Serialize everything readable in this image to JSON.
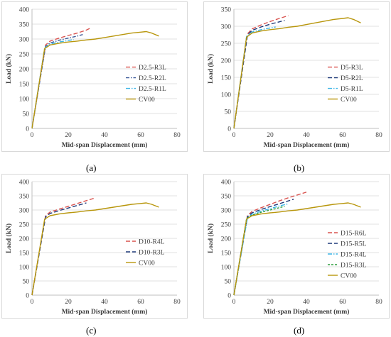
{
  "captions": [
    "(a)",
    "(b)",
    "(c)",
    "(d)"
  ],
  "chart_data": [
    {
      "type": "line",
      "panel": "(a)",
      "xlabel": "Mid-span Displacement (mm)",
      "ylabel": "Load (kN)",
      "xlim": [
        0,
        80
      ],
      "ylim": [
        0,
        400
      ],
      "xticks": [
        0,
        20,
        40,
        60,
        80
      ],
      "yticks": [
        0,
        50,
        100,
        150,
        200,
        250,
        300,
        350,
        400
      ],
      "grid": true,
      "legend": "right",
      "series": [
        {
          "name": "D2.5-R3L",
          "color": "#d9534f",
          "dash": "6,3",
          "x": [
            0,
            7.5,
            10,
            15,
            20,
            25,
            30,
            32
          ],
          "y": [
            0,
            280,
            293,
            303,
            312,
            320,
            330,
            336
          ]
        },
        {
          "name": "D2.5-R2L",
          "color": "#3b5998",
          "dash": "5,2,1.5,2",
          "x": [
            0,
            7.5,
            10,
            15,
            20,
            25,
            28
          ],
          "y": [
            0,
            275,
            287,
            296,
            303,
            310,
            315
          ]
        },
        {
          "name": "D2.5-R1L",
          "color": "#3ab4e6",
          "dash": "6,2,1.5,2",
          "x": [
            0,
            7,
            10,
            15,
            20,
            23
          ],
          "y": [
            0,
            270,
            283,
            290,
            295,
            298
          ]
        },
        {
          "name": "CV00",
          "color": "#b8960c",
          "dash": "",
          "x": [
            0,
            7,
            10,
            15,
            20,
            25,
            30,
            35,
            40,
            45,
            50,
            55,
            60,
            63,
            66,
            70
          ],
          "y": [
            0,
            268,
            280,
            286,
            290,
            293,
            297,
            300,
            305,
            310,
            315,
            320,
            323,
            325,
            320,
            310
          ]
        }
      ]
    },
    {
      "type": "line",
      "panel": "(b)",
      "xlabel": "Mid-span Displacement (mm)",
      "ylabel": "Load (kN)",
      "xlim": [
        0,
        80
      ],
      "ylim": [
        0,
        350
      ],
      "xticks": [
        0,
        20,
        40,
        60,
        80
      ],
      "yticks": [
        0,
        50,
        100,
        150,
        200,
        250,
        300,
        350
      ],
      "grid": true,
      "legend": "right",
      "series": [
        {
          "name": "D5-R3L",
          "color": "#d9534f",
          "dash": "6,3",
          "x": [
            0,
            7.5,
            10,
            15,
            20,
            25,
            30
          ],
          "y": [
            0,
            278,
            292,
            304,
            314,
            323,
            331
          ]
        },
        {
          "name": "D5-R2L",
          "color": "#1f3a7a",
          "dash": "6,3",
          "x": [
            0,
            7.5,
            10,
            15,
            20,
            25,
            28
          ],
          "y": [
            0,
            274,
            288,
            298,
            306,
            313,
            317
          ]
        },
        {
          "name": "D5-R1L",
          "color": "#3ab4e6",
          "dash": "6,2,1.5,2",
          "x": [
            0,
            7,
            10,
            15,
            20,
            23
          ],
          "y": [
            0,
            270,
            283,
            290,
            295,
            298
          ]
        },
        {
          "name": "CV00",
          "color": "#b8960c",
          "dash": "",
          "x": [
            0,
            7,
            10,
            15,
            20,
            25,
            30,
            35,
            40,
            45,
            50,
            55,
            60,
            63,
            66,
            70
          ],
          "y": [
            0,
            268,
            280,
            286,
            290,
            293,
            297,
            300,
            305,
            310,
            315,
            320,
            323,
            325,
            320,
            310
          ]
        }
      ]
    },
    {
      "type": "line",
      "panel": "(c)",
      "xlabel": "Mid-span Displacement (mm)",
      "ylabel": "Load (kN)",
      "xlim": [
        0,
        80
      ],
      "ylim": [
        0,
        400
      ],
      "xticks": [
        0,
        20,
        40,
        60,
        80
      ],
      "yticks": [
        0,
        50,
        100,
        150,
        200,
        250,
        300,
        350,
        400
      ],
      "grid": true,
      "legend": "right",
      "series": [
        {
          "name": "D10-R4L",
          "color": "#d9534f",
          "dash": "6,3",
          "x": [
            0,
            7.5,
            10,
            15,
            20,
            25,
            30,
            35
          ],
          "y": [
            0,
            280,
            293,
            303,
            313,
            323,
            333,
            343
          ]
        },
        {
          "name": "D10-R3L",
          "color": "#1f3a7a",
          "dash": "6,3",
          "x": [
            0,
            7.5,
            10,
            15,
            20,
            25,
            30
          ],
          "y": [
            0,
            276,
            288,
            298,
            307,
            316,
            325
          ]
        },
        {
          "name": "CV00",
          "color": "#b8960c",
          "dash": "",
          "x": [
            0,
            7,
            10,
            15,
            20,
            25,
            30,
            35,
            40,
            45,
            50,
            55,
            60,
            63,
            66,
            70
          ],
          "y": [
            0,
            268,
            280,
            286,
            290,
            293,
            297,
            300,
            305,
            310,
            315,
            320,
            323,
            325,
            320,
            310
          ]
        }
      ]
    },
    {
      "type": "line",
      "panel": "(d)",
      "xlabel": "Mid-span Displacement (mm)",
      "ylabel": "Load (kN)",
      "xlim": [
        0,
        80
      ],
      "ylim": [
        0,
        400
      ],
      "xticks": [
        0,
        20,
        40,
        60,
        80
      ],
      "yticks": [
        0,
        50,
        100,
        150,
        200,
        250,
        300,
        350,
        400
      ],
      "grid": true,
      "legend": "right",
      "series": [
        {
          "name": "D15-R6L",
          "color": "#d9534f",
          "dash": "6,3",
          "x": [
            0,
            7.5,
            10,
            15,
            20,
            25,
            30,
            35,
            40
          ],
          "y": [
            0,
            280,
            295,
            308,
            320,
            332,
            343,
            353,
            363
          ]
        },
        {
          "name": "D15-R5L",
          "color": "#1f3a7a",
          "dash": "6,3",
          "x": [
            0,
            7.5,
            10,
            15,
            20,
            25,
            30,
            33
          ],
          "y": [
            0,
            276,
            290,
            302,
            312,
            322,
            332,
            338
          ]
        },
        {
          "name": "D15-R4L",
          "color": "#3ab4e6",
          "dash": "6,2,1.5,2",
          "x": [
            0,
            7.5,
            10,
            15,
            20,
            25,
            30
          ],
          "y": [
            0,
            272,
            285,
            296,
            305,
            314,
            322
          ]
        },
        {
          "name": "D15-R3L",
          "color": "#2e9e3e",
          "dash": "3,2",
          "x": [
            0,
            7,
            10,
            15,
            20,
            25,
            28
          ],
          "y": [
            0,
            270,
            282,
            292,
            300,
            308,
            313
          ]
        },
        {
          "name": "CV00",
          "color": "#b8960c",
          "dash": "",
          "x": [
            0,
            7,
            10,
            15,
            20,
            25,
            30,
            35,
            40,
            45,
            50,
            55,
            60,
            63,
            66,
            70
          ],
          "y": [
            0,
            268,
            280,
            286,
            290,
            293,
            297,
            300,
            305,
            310,
            315,
            320,
            323,
            325,
            320,
            310
          ]
        }
      ]
    }
  ]
}
